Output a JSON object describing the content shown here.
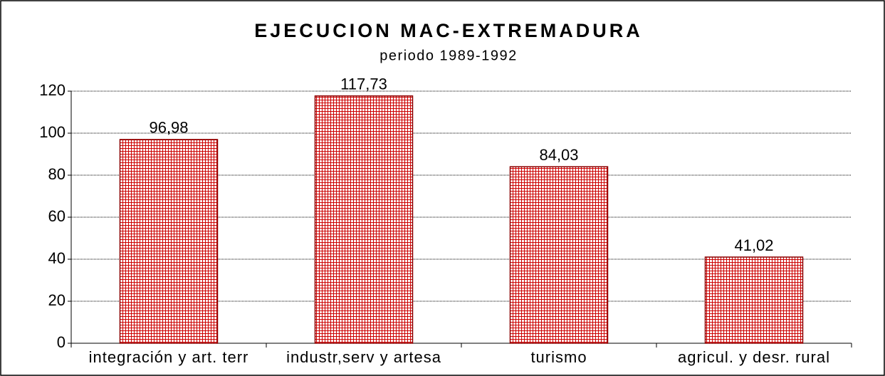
{
  "chart_data": {
    "type": "bar",
    "title": "EJECUCION MAC-EXTREMADURA",
    "subtitle": "periodo 1989-1992",
    "categories": [
      "integración y art. terr",
      "industr,serv y artesa",
      "turismo",
      "agricul. y desr. rural"
    ],
    "values": [
      96.98,
      117.73,
      84.03,
      41.02
    ],
    "value_labels": [
      "96,98",
      "117,73",
      "84,03",
      "41,02"
    ],
    "color": "#cc0000",
    "ylim": [
      0,
      120
    ],
    "yticks": [
      0,
      20,
      40,
      60,
      80,
      100,
      120
    ],
    "grid": true
  }
}
